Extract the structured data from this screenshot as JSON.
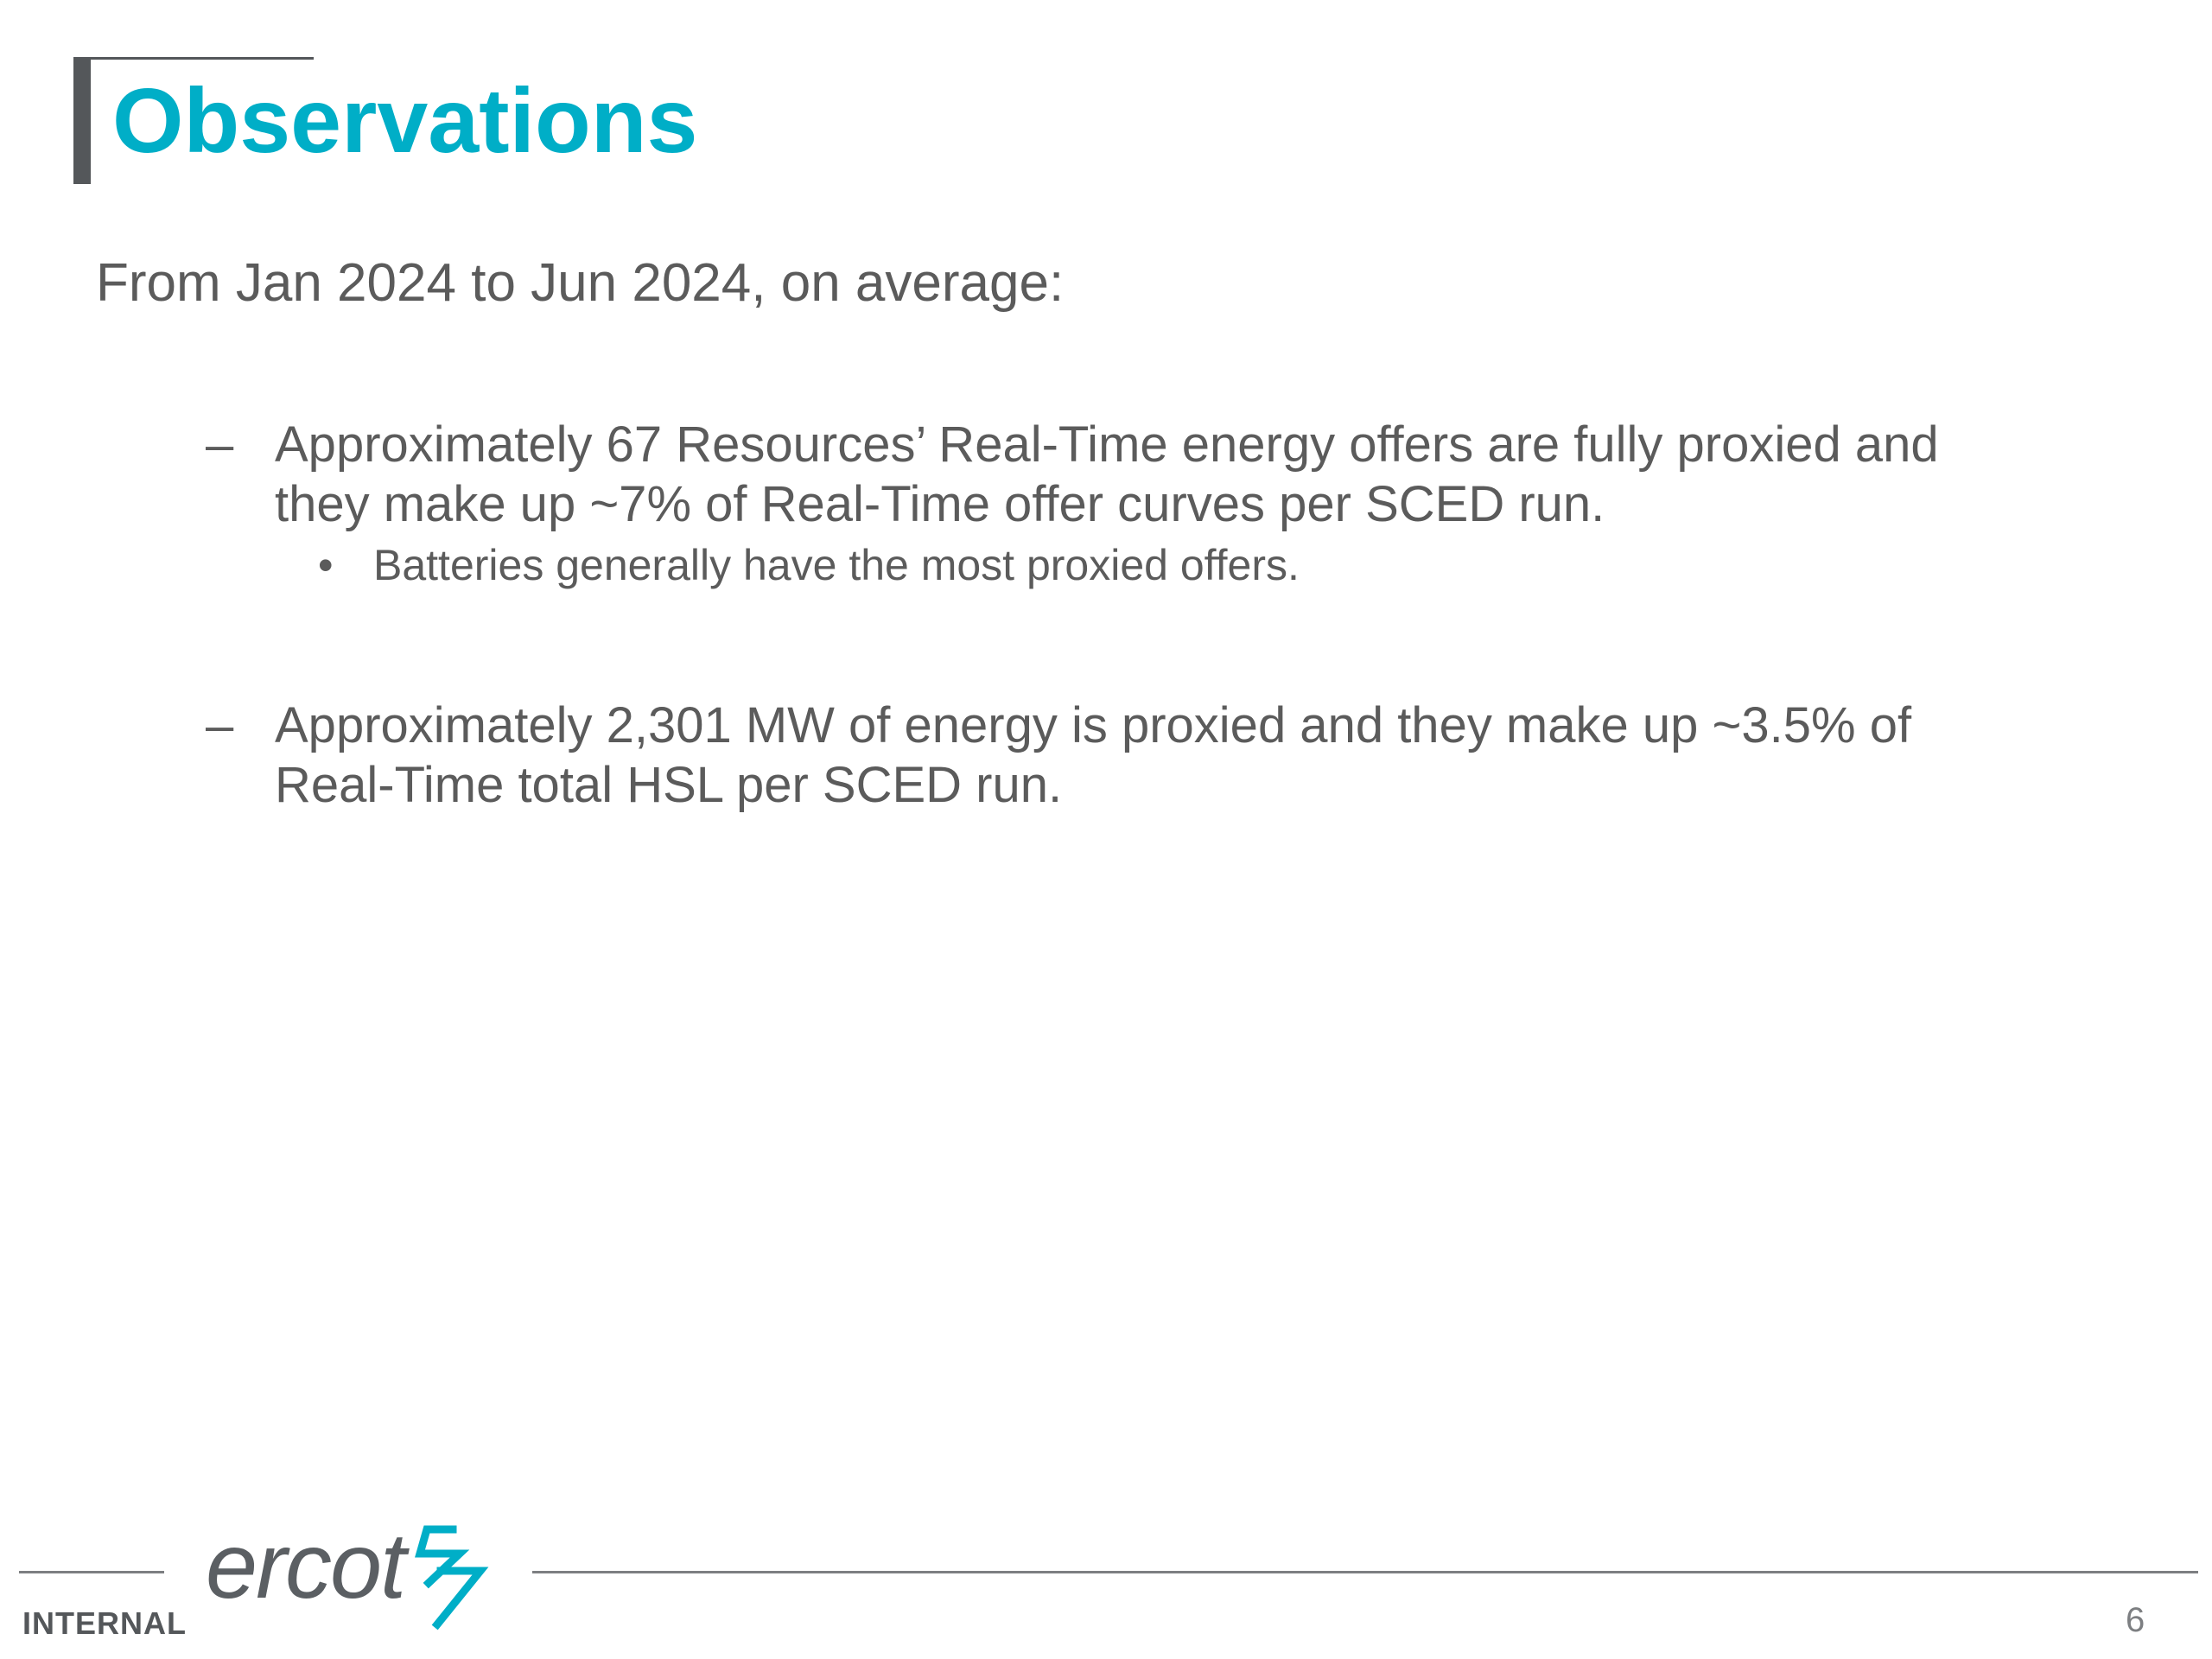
{
  "slide": {
    "title": "Observations",
    "intro": "From Jan 2024 to Jun 2024, on average:",
    "bullets": [
      {
        "marker": "–",
        "text": "Approximately 67 Resources’ Real-Time energy offers are fully proxied and they make up ~7% of Real-Time offer curves per SCED run.",
        "sub_bullets": [
          {
            "marker": "•",
            "text": "Batteries generally have the most proxied offers."
          }
        ]
      },
      {
        "marker": "–",
        "text": "Approximately 2,301 MW of energy is proxied and they make up ~3.5% of Real-Time total HSL per SCED run."
      }
    ]
  },
  "footer": {
    "classification": "INTERNAL",
    "logo_text": "ercot",
    "logo_icon": "ercot-bolt-icon",
    "page_number": "6"
  },
  "colors": {
    "accent": "#00aec7",
    "text": "#5b5b5b",
    "bar": "#54575a"
  }
}
